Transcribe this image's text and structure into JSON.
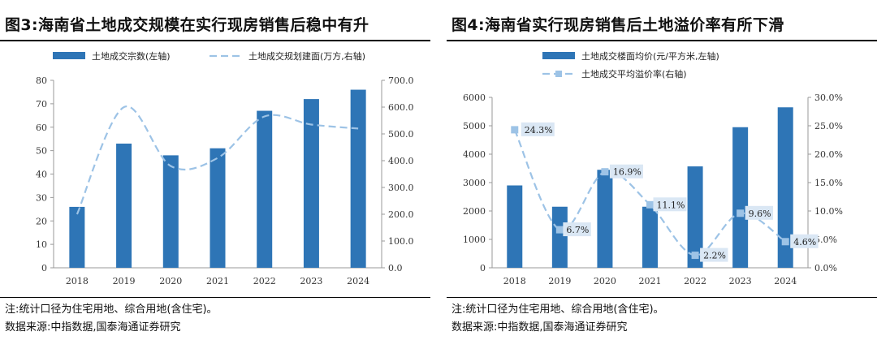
{
  "colors": {
    "bar": "#2e75b6",
    "line": "#9dc3e6",
    "axis": "#999999",
    "label_bg": "#dae7f4"
  },
  "left": {
    "title": "图3:海南省土地成交规模在实行现房销售后稳中有升",
    "note": "注:统计口径为住宅用地、综合用地(含住宅)。",
    "source": "数据来源:中指数据,国泰海通证券研究",
    "chart_data": {
      "type": "bar",
      "categories": [
        "2018",
        "2019",
        "2020",
        "2021",
        "2022",
        "2023",
        "2024"
      ],
      "series": [
        {
          "name": "土地成交宗数(左轴)",
          "type": "bar",
          "axis": "left",
          "values": [
            26,
            53,
            48,
            51,
            67,
            72,
            76
          ]
        },
        {
          "name": "土地成交规划建面(万方,右轴)",
          "type": "line",
          "style": "dashed-smooth",
          "axis": "right",
          "values": [
            200,
            600,
            380,
            410,
            565,
            535,
            520
          ]
        }
      ],
      "y_left": {
        "min": 0,
        "max": 80,
        "step": 10,
        "ticks": [
          "0",
          "10",
          "20",
          "30",
          "40",
          "50",
          "60",
          "70",
          "80"
        ]
      },
      "y_right": {
        "min": 0,
        "max": 700,
        "step": 100,
        "ticks": [
          "0.0",
          "100.0",
          "200.0",
          "300.0",
          "400.0",
          "500.0",
          "600.0",
          "700.0"
        ]
      },
      "legend": "top"
    }
  },
  "right": {
    "title": "图4:海南省实行现房销售后土地溢价率有所下滑",
    "note": "注:统计口径为住宅用地、综合用地(含住宅)。",
    "source": "数据来源:中指数据,国泰海通证券研究",
    "chart_data": {
      "type": "bar",
      "categories": [
        "2018",
        "2019",
        "2020",
        "2021",
        "2022",
        "2023",
        "2024"
      ],
      "series": [
        {
          "name": "土地成交楼面均价(元/平方米,左轴)",
          "type": "bar",
          "axis": "left",
          "values": [
            2900,
            2150,
            3450,
            2150,
            3570,
            4950,
            5650
          ]
        },
        {
          "name": "土地成交平均溢价率(右轴)",
          "type": "line",
          "style": "dashed-smooth-markers",
          "axis": "right",
          "values": [
            24.3,
            6.7,
            16.9,
            11.1,
            2.2,
            9.6,
            4.6
          ],
          "labels": [
            "24.3%",
            "6.7%",
            "16.9%",
            "11.1%",
            "2.2%",
            "9.6%",
            "4.6%"
          ]
        }
      ],
      "y_left": {
        "min": 0,
        "max": 6000,
        "step": 1000,
        "ticks": [
          "0",
          "1000",
          "2000",
          "3000",
          "4000",
          "5000",
          "6000"
        ]
      },
      "y_right": {
        "min": 0,
        "max": 30,
        "step": 5,
        "ticks": [
          "0.0%",
          "5.0%",
          "10.0%",
          "15.0%",
          "20.0%",
          "25.0%",
          "30.0%"
        ]
      },
      "legend": "top"
    }
  }
}
